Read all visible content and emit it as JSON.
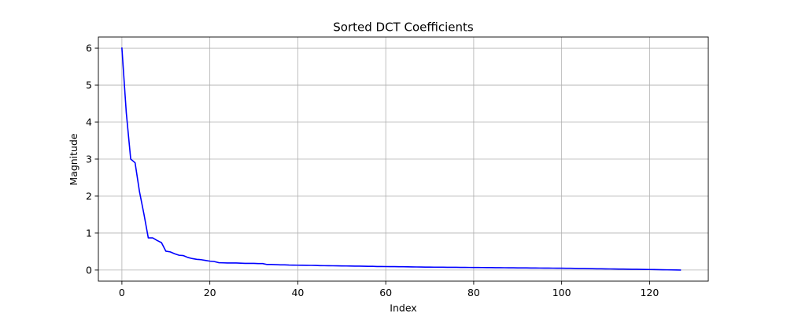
{
  "chart_data": {
    "type": "line",
    "title": "Sorted DCT Coefficients",
    "xlabel": "Index",
    "ylabel": "Magnitude",
    "xlim": [
      -5.35,
      133.35
    ],
    "ylim": [
      -0.3,
      6.3
    ],
    "xticks": [
      0,
      20,
      40,
      60,
      80,
      100,
      120
    ],
    "yticks": [
      0,
      1,
      2,
      3,
      4,
      5,
      6
    ],
    "grid": true,
    "line_color": "#0000ff",
    "grid_color": "#b0b0b0",
    "series": [
      {
        "values": [
          6.0,
          4.25,
          3.0,
          2.9,
          2.12,
          1.52,
          0.87,
          0.87,
          0.8,
          0.74,
          0.51,
          0.49,
          0.44,
          0.4,
          0.39,
          0.34,
          0.31,
          0.29,
          0.28,
          0.26,
          0.24,
          0.23,
          0.2,
          0.195,
          0.19,
          0.19,
          0.19,
          0.185,
          0.18,
          0.18,
          0.18,
          0.175,
          0.175,
          0.15,
          0.15,
          0.145,
          0.14,
          0.14,
          0.135,
          0.133,
          0.131,
          0.13,
          0.128,
          0.126,
          0.124,
          0.12,
          0.118,
          0.116,
          0.115,
          0.113,
          0.111,
          0.11,
          0.108,
          0.106,
          0.105,
          0.103,
          0.101,
          0.1,
          0.095,
          0.095,
          0.094,
          0.093,
          0.092,
          0.09,
          0.089,
          0.087,
          0.085,
          0.083,
          0.081,
          0.08,
          0.079,
          0.078,
          0.077,
          0.076,
          0.075,
          0.074,
          0.073,
          0.072,
          0.071,
          0.07,
          0.069,
          0.068,
          0.067,
          0.066,
          0.065,
          0.064,
          0.063,
          0.062,
          0.061,
          0.06,
          0.059,
          0.058,
          0.057,
          0.056,
          0.055,
          0.054,
          0.053,
          0.052,
          0.051,
          0.05,
          0.049,
          0.048,
          0.047,
          0.045,
          0.043,
          0.041,
          0.039,
          0.037,
          0.035,
          0.033,
          0.031,
          0.03,
          0.028,
          0.026,
          0.025,
          0.023,
          0.021,
          0.02,
          0.018,
          0.016,
          0.014,
          0.012,
          0.01,
          0.008,
          0.006,
          0.004,
          0.002,
          0.0
        ]
      }
    ]
  }
}
